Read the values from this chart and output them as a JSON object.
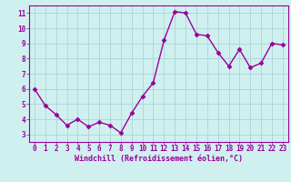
{
  "x": [
    0,
    1,
    2,
    3,
    4,
    5,
    6,
    7,
    8,
    9,
    10,
    11,
    12,
    13,
    14,
    15,
    16,
    17,
    18,
    19,
    20,
    21,
    22,
    23
  ],
  "y": [
    6.0,
    4.9,
    4.3,
    3.6,
    4.0,
    3.5,
    3.8,
    3.6,
    3.1,
    4.4,
    5.5,
    6.4,
    9.2,
    11.1,
    11.0,
    9.6,
    9.5,
    8.4,
    7.5,
    8.6,
    7.4,
    7.7,
    9.0,
    8.9
  ],
  "line_color": "#990099",
  "marker": "D",
  "marker_size": 2.5,
  "bg_color": "#d0f0f0",
  "grid_color": "#b0d8d8",
  "xlabel": "Windchill (Refroidissement éolien,°C)",
  "tick_color": "#990099",
  "xlim": [
    -0.5,
    23.5
  ],
  "ylim": [
    2.5,
    11.5
  ],
  "yticks": [
    3,
    4,
    5,
    6,
    7,
    8,
    9,
    10,
    11
  ],
  "xticks": [
    0,
    1,
    2,
    3,
    4,
    5,
    6,
    7,
    8,
    9,
    10,
    11,
    12,
    13,
    14,
    15,
    16,
    17,
    18,
    19,
    20,
    21,
    22,
    23
  ],
  "line_width": 1.0,
  "tick_fontsize": 5.5,
  "xlabel_fontsize": 6.0,
  "spine_color": "#990099"
}
